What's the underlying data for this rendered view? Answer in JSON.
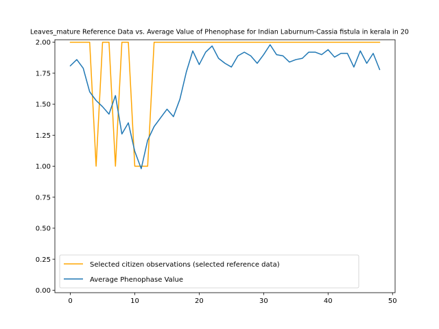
{
  "chart_data": {
    "type": "line",
    "title": "Leaves_mature Reference Data vs. Average Value of Phenophase for Indian Laburnum-Cassia fistula in kerala in 20",
    "xlabel": "",
    "ylabel": "",
    "xlim": [
      -2.4,
      50.4
    ],
    "ylim": [
      -0.02,
      2.02
    ],
    "xticks": [
      0,
      10,
      20,
      30,
      40,
      50
    ],
    "yticks": [
      0.0,
      0.25,
      0.5,
      0.75,
      1.0,
      1.25,
      1.5,
      1.75,
      2.0
    ],
    "xtick_labels": [
      "0",
      "10",
      "20",
      "30",
      "40",
      "50"
    ],
    "ytick_labels": [
      "0.00",
      "0.25",
      "0.50",
      "0.75",
      "1.00",
      "1.25",
      "1.50",
      "1.75",
      "2.00"
    ],
    "grid": false,
    "legend": "lower-left",
    "series": [
      {
        "name": "Selected citizen observations (selected reference data)",
        "color": "#ffa500",
        "x": [
          0,
          1,
          2,
          3,
          4,
          5,
          6,
          7,
          8,
          9,
          10,
          11,
          12,
          13,
          14,
          15,
          16,
          17,
          18,
          19,
          20,
          21,
          22,
          23,
          24,
          25,
          26,
          27,
          28,
          29,
          30,
          31,
          32,
          33,
          34,
          35,
          36,
          37,
          38,
          39,
          40,
          41,
          42,
          43,
          44,
          45,
          46,
          47,
          48
        ],
        "values": [
          2,
          2,
          2,
          2,
          1,
          2,
          2,
          1,
          2,
          2,
          1,
          1,
          1,
          2,
          2,
          2,
          2,
          2,
          2,
          2,
          2,
          2,
          2,
          2,
          2,
          2,
          2,
          2,
          2,
          2,
          2,
          2,
          2,
          2,
          2,
          2,
          2,
          2,
          2,
          2,
          2,
          2,
          2,
          2,
          2,
          2,
          2,
          2,
          2
        ]
      },
      {
        "name": "Average Phenophase Value",
        "color": "#1f77b4",
        "x": [
          0,
          1,
          2,
          3,
          4,
          5,
          6,
          7,
          8,
          9,
          10,
          11,
          12,
          13,
          14,
          15,
          16,
          17,
          18,
          19,
          20,
          21,
          22,
          23,
          24,
          25,
          26,
          27,
          28,
          29,
          30,
          31,
          32,
          33,
          34,
          35,
          36,
          37,
          38,
          39,
          40,
          41,
          42,
          43,
          44,
          45,
          46,
          47,
          48
        ],
        "values": [
          1.81,
          1.86,
          1.79,
          1.6,
          1.53,
          1.48,
          1.42,
          1.57,
          1.26,
          1.35,
          1.12,
          0.98,
          1.21,
          1.32,
          1.39,
          1.46,
          1.4,
          1.54,
          1.76,
          1.93,
          1.82,
          1.92,
          1.97,
          1.87,
          1.83,
          1.8,
          1.89,
          1.92,
          1.89,
          1.83,
          1.9,
          1.98,
          1.9,
          1.89,
          1.84,
          1.86,
          1.87,
          1.92,
          1.92,
          1.9,
          1.94,
          1.88,
          1.91,
          1.91,
          1.8,
          1.93,
          1.83,
          1.91,
          1.78
        ]
      }
    ]
  }
}
